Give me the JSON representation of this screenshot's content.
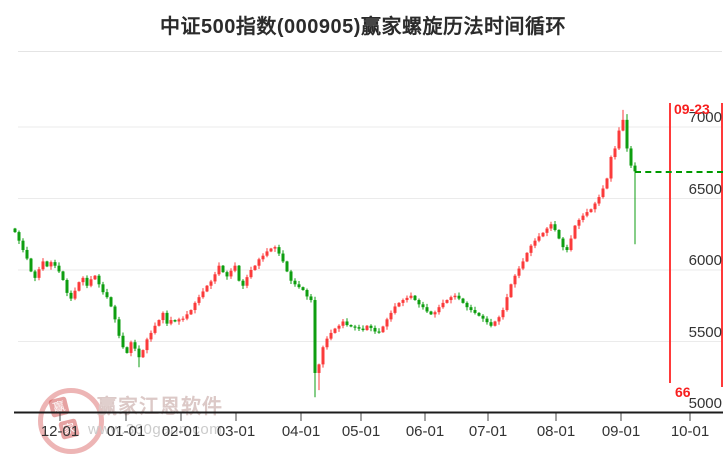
{
  "title": "中证500指数(000905)赢家螺旋历法时间循环",
  "y_axis_labels": [
    "7000",
    "6500",
    "6000",
    "5500",
    "5000"
  ],
  "x_axis_labels": [
    "12-01",
    "01-01",
    "02-01",
    "03-01",
    "04-01",
    "05-01",
    "06-01",
    "07-01",
    "08-01",
    "09-01",
    "10-01"
  ],
  "cycle_annotation": {
    "date_label": "09-23",
    "cycle_number": "66"
  },
  "watermark": {
    "brand": "赢家江恩软件",
    "url": "www.360gann.com",
    "seal_char_1": "赢",
    "seal_char_2": "家"
  },
  "chart_data": {
    "type": "candlestick",
    "title": "中证500指数(000905)赢家螺旋历法时间循环",
    "x_ticks": [
      "12-01",
      "01-01",
      "02-01",
      "03-01",
      "04-01",
      "05-01",
      "06-01",
      "07-01",
      "08-01",
      "09-01",
      "10-01"
    ],
    "y_ticks": [
      5000,
      5500,
      6000,
      6500,
      7000
    ],
    "ylim": [
      5000,
      7190
    ],
    "grid": true,
    "first_open": 6290,
    "closes": [
      6265,
      6205,
      6140,
      6080,
      5990,
      5945,
      6005,
      6060,
      6025,
      6055,
      6030,
      5990,
      5930,
      5840,
      5800,
      5855,
      5915,
      5945,
      5890,
      5935,
      5960,
      5900,
      5845,
      5810,
      5745,
      5655,
      5540,
      5460,
      5420,
      5495,
      5450,
      5390,
      5440,
      5515,
      5560,
      5610,
      5650,
      5700,
      5625,
      5650,
      5640,
      5655,
      5660,
      5690,
      5720,
      5770,
      5810,
      5850,
      5890,
      5920,
      5970,
      6030,
      5985,
      5955,
      5995,
      6030,
      5925,
      5890,
      5950,
      6000,
      6030,
      6075,
      6100,
      6130,
      6150,
      6160,
      6115,
      6060,
      5990,
      5925,
      5900,
      5880,
      5860,
      5815,
      5790,
      5280,
      5340,
      5460,
      5520,
      5560,
      5590,
      5610,
      5640,
      5615,
      5605,
      5600,
      5590,
      5580,
      5610,
      5595,
      5570,
      5565,
      5605,
      5655,
      5700,
      5745,
      5770,
      5790,
      5805,
      5820,
      5790,
      5760,
      5740,
      5710,
      5690,
      5705,
      5740,
      5770,
      5790,
      5810,
      5820,
      5800,
      5770,
      5740,
      5720,
      5700,
      5680,
      5660,
      5635,
      5610,
      5640,
      5670,
      5720,
      5810,
      5900,
      5960,
      6010,
      6060,
      6120,
      6170,
      6205,
      6235,
      6260,
      6290,
      6320,
      6280,
      6220,
      6160,
      6140,
      6220,
      6310,
      6350,
      6380,
      6405,
      6425,
      6465,
      6510,
      6570,
      6640,
      6790,
      6850,
      6975,
      7050,
      6850,
      6730,
      6690
    ],
    "wick_overrides": {
      "0": {
        "high": 6295
      },
      "31": {
        "low": 5320
      },
      "75": {
        "low": 5110
      },
      "76": {
        "low": 5160
      },
      "152": {
        "high": 7120
      },
      "153": {
        "high": 7090
      },
      "155": {
        "low": 6180
      }
    },
    "reference_price": 6692,
    "cycle_line_date": "09-23",
    "cycle_line_number": "66",
    "colors": {
      "up": "#fb3b3b",
      "down": "#0e9e10",
      "reference_line": "#009a00",
      "cycle_line": "#ff3a3a",
      "grid": "#ebebeb",
      "axis": "#1c1c1c"
    }
  }
}
